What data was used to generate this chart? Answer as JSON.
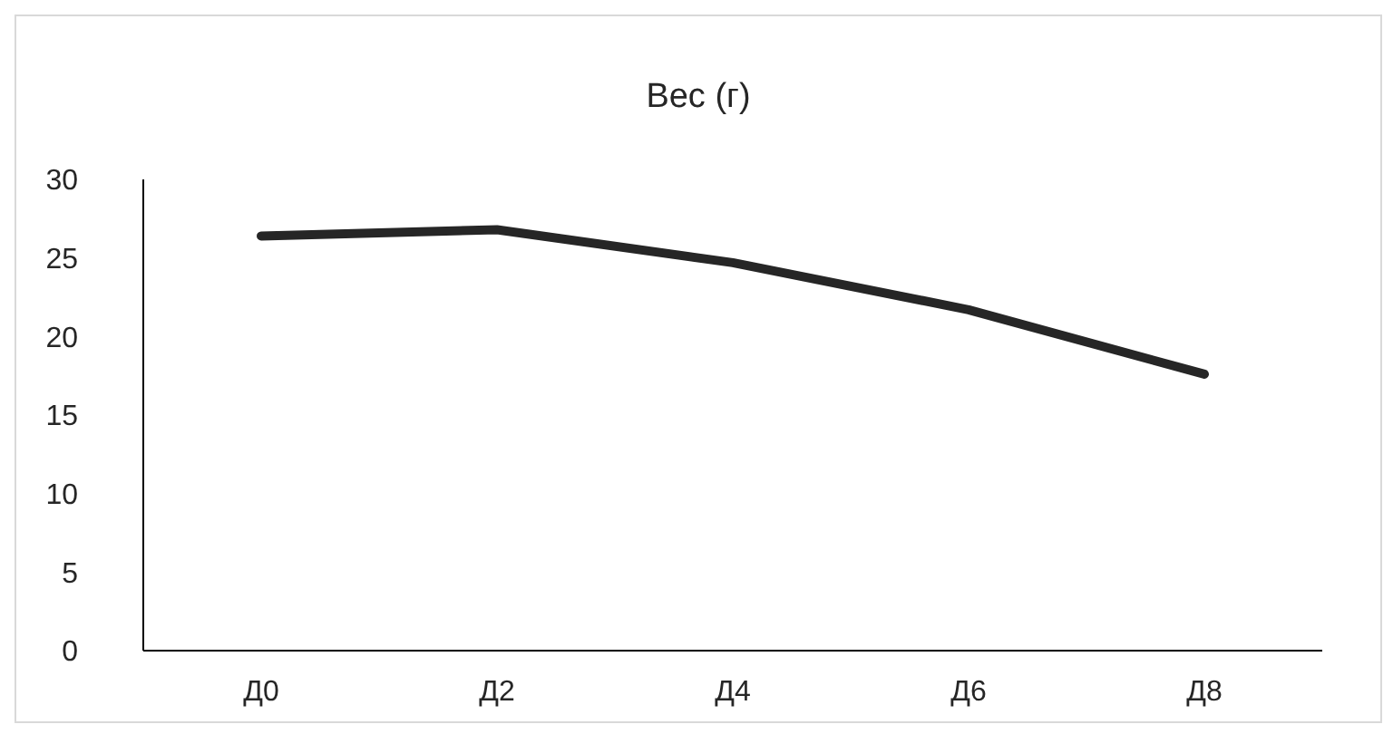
{
  "chart_data": {
    "type": "line",
    "title": "Вес (г)",
    "categories": [
      "Д0",
      "Д2",
      "Д4",
      "Д6",
      "Д8"
    ],
    "series": [
      {
        "color": "#262626",
        "values": [
          26.4,
          26.8,
          24.7,
          21.7,
          17.6
        ]
      }
    ],
    "ylim": [
      0,
      30
    ],
    "yticks": [
      0,
      5,
      10,
      15,
      20,
      25,
      30
    ],
    "grid": false,
    "legend": false,
    "marker": "none",
    "line_style": "solid"
  }
}
